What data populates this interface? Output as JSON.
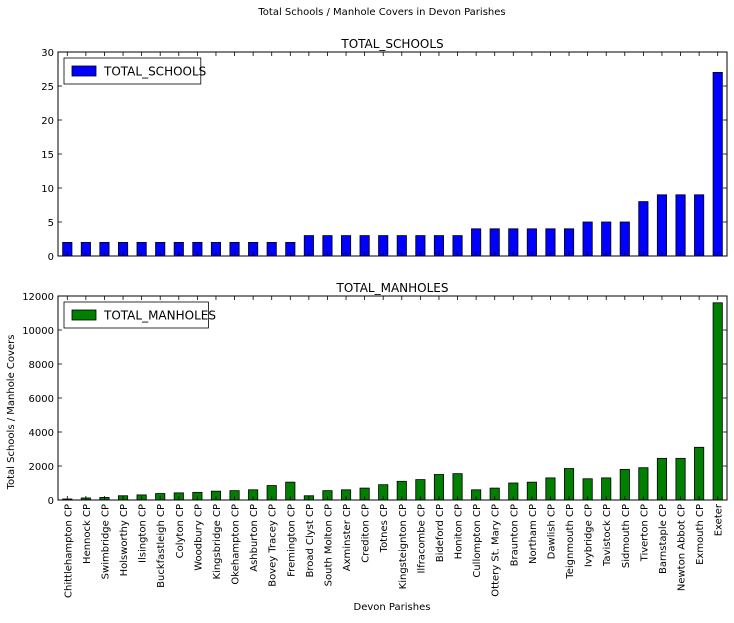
{
  "figure": {
    "suptitle": "Total Schools / Manhole Covers in Devon Parishes",
    "xlabel": "Devon Parishes",
    "ylabel": "Total Schools / Manhole Covers"
  },
  "colors": {
    "schools": "#0000ff",
    "manholes": "#007f00"
  },
  "chart_data": [
    {
      "type": "bar",
      "title": "TOTAL_SCHOOLS",
      "legend": "top-left",
      "ylim": [
        0,
        30
      ],
      "yticks": [
        0,
        5,
        10,
        15,
        20,
        25,
        30
      ],
      "categories": [
        "Chittlehampton CP",
        "Hennock CP",
        "Swimbridge CP",
        "Holsworthy CP",
        "Ilsington CP",
        "Buckfastleigh CP",
        "Colyton CP",
        "Woodbury CP",
        "Kingsbridge CP",
        "Okehampton CP",
        "Ashburton CP",
        "Bovey Tracey CP",
        "Fremington CP",
        "Broad Clyst CP",
        "South Molton CP",
        "Axminster CP",
        "Crediton CP",
        "Totnes CP",
        "Kingsteignton CP",
        "Ilfracombe CP",
        "Bideford CP",
        "Honiton CP",
        "Cullompton CP",
        "Ottery St. Mary CP",
        "Braunton CP",
        "Northam CP",
        "Dawlish CP",
        "Teignmouth CP",
        "Ivybridge CP",
        "Tavistock CP",
        "Sidmouth CP",
        "Tiverton CP",
        "Barnstaple CP",
        "Newton Abbot CP",
        "Exmouth CP",
        "Exeter"
      ],
      "series": [
        {
          "name": "TOTAL_SCHOOLS",
          "values": [
            2,
            2,
            2,
            2,
            2,
            2,
            2,
            2,
            2,
            2,
            2,
            2,
            2,
            3,
            3,
            3,
            3,
            3,
            3,
            3,
            3,
            3,
            4,
            4,
            4,
            4,
            4,
            4,
            5,
            5,
            5,
            8,
            9,
            9,
            9,
            27
          ]
        }
      ]
    },
    {
      "type": "bar",
      "title": "TOTAL_MANHOLES",
      "legend": "top-left",
      "ylim": [
        0,
        12000
      ],
      "yticks": [
        0,
        2000,
        4000,
        6000,
        8000,
        10000,
        12000
      ],
      "categories": [
        "Chittlehampton CP",
        "Hennock CP",
        "Swimbridge CP",
        "Holsworthy CP",
        "Ilsington CP",
        "Buckfastleigh CP",
        "Colyton CP",
        "Woodbury CP",
        "Kingsbridge CP",
        "Okehampton CP",
        "Ashburton CP",
        "Bovey Tracey CP",
        "Fremington CP",
        "Broad Clyst CP",
        "South Molton CP",
        "Axminster CP",
        "Crediton CP",
        "Totnes CP",
        "Kingsteignton CP",
        "Ilfracombe CP",
        "Bideford CP",
        "Honiton CP",
        "Cullompton CP",
        "Ottery St. Mary CP",
        "Braunton CP",
        "Northam CP",
        "Dawlish CP",
        "Teignmouth CP",
        "Ivybridge CP",
        "Tavistock CP",
        "Sidmouth CP",
        "Tiverton CP",
        "Barnstaple CP",
        "Newton Abbot CP",
        "Exmouth CP",
        "Exeter"
      ],
      "series": [
        {
          "name": "TOTAL_MANHOLES",
          "values": [
            60,
            120,
            150,
            250,
            300,
            380,
            420,
            450,
            520,
            550,
            600,
            850,
            1050,
            250,
            550,
            600,
            700,
            900,
            1100,
            1200,
            1500,
            1550,
            600,
            700,
            1000,
            1050,
            1300,
            1850,
            1250,
            1300,
            1800,
            1900,
            2450,
            2450,
            3100,
            11600
          ]
        }
      ]
    }
  ]
}
